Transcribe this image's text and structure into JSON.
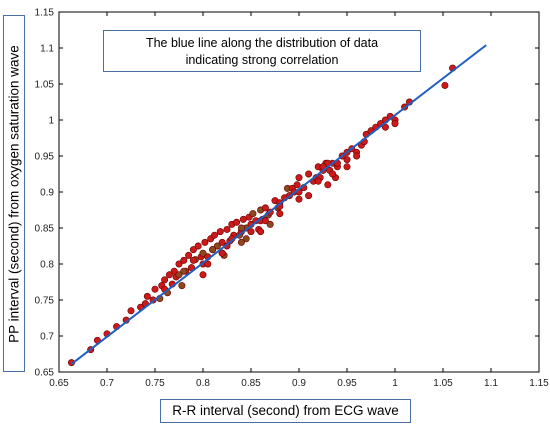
{
  "chart_data": {
    "type": "scatter",
    "title": "",
    "xlabel": "R-R interval (second) from ECG wave",
    "ylabel": "PP interval (second) from oxygen saturation wave",
    "xlim": [
      0.65,
      1.15
    ],
    "ylim": [
      0.65,
      1.15
    ],
    "x_ticks": [
      "0.65",
      "0.7",
      "0.75",
      "0.8",
      "0.85",
      "0.9",
      "0.95",
      "1",
      "1.05",
      "1.1",
      "1.15"
    ],
    "y_ticks": [
      "0.65",
      "0.7",
      "0.75",
      "0.8",
      "0.85",
      "0.9",
      "0.95",
      "1",
      "1.05",
      "1.1",
      "1.15"
    ],
    "grid": false,
    "annotation": [
      "The blue line along the distribution of data",
      "indicating strong correlation"
    ],
    "fit_line": {
      "x": [
        0.663,
        1.095
      ],
      "y": [
        0.661,
        1.104
      ],
      "color": "#1f5fbf"
    },
    "colors": {
      "point_fill": "#cc1a1a",
      "point_edge": "#6b0000",
      "dense_point_fill": "#8a4a1e",
      "fit_line": "#1f5fbf"
    },
    "series": [
      {
        "x": [
          0.663,
          0.683,
          0.69,
          0.7,
          0.71,
          0.72,
          0.725,
          0.735,
          0.74,
          0.742,
          0.748,
          0.75,
          0.755,
          0.757,
          0.76,
          0.763,
          0.765,
          0.768,
          0.77,
          0.772,
          0.775,
          0.778,
          0.78,
          0.782,
          0.785,
          0.788,
          0.79,
          0.792,
          0.795,
          0.798,
          0.8,
          0.802,
          0.805,
          0.808,
          0.81,
          0.812,
          0.815,
          0.818,
          0.82,
          0.822,
          0.825,
          0.828,
          0.83,
          0.832,
          0.835,
          0.838,
          0.84,
          0.842,
          0.845,
          0.848,
          0.85,
          0.852,
          0.855,
          0.858,
          0.86,
          0.862,
          0.865,
          0.868,
          0.87,
          0.875,
          0.878,
          0.88,
          0.885,
          0.888,
          0.89,
          0.893,
          0.895,
          0.898,
          0.9,
          0.905,
          0.91,
          0.915,
          0.918,
          0.92,
          0.922,
          0.925,
          0.928,
          0.93,
          0.932,
          0.935,
          0.938,
          0.94,
          0.945,
          0.95,
          0.955,
          0.96,
          0.965,
          0.968,
          0.97,
          0.975,
          0.98,
          0.985,
          0.99,
          0.995,
          1.0,
          1.01,
          1.015,
          1.052,
          1.06,
          0.78,
          0.79,
          0.8,
          0.81,
          0.82,
          0.83,
          0.84,
          0.85,
          0.86,
          0.87,
          0.88,
          0.9,
          0.91,
          0.92,
          0.93,
          0.95,
          0.96,
          0.76,
          0.775,
          0.805,
          0.825,
          0.845,
          0.865,
          0.9,
          0.925,
          0.94,
          0.99,
          1.0,
          0.8,
          0.82,
          0.84,
          0.86,
          0.88,
          0.935,
          0.95
        ],
        "y": [
          0.663,
          0.681,
          0.694,
          0.703,
          0.713,
          0.722,
          0.735,
          0.74,
          0.745,
          0.755,
          0.75,
          0.765,
          0.752,
          0.77,
          0.778,
          0.76,
          0.785,
          0.772,
          0.79,
          0.782,
          0.8,
          0.77,
          0.805,
          0.79,
          0.812,
          0.795,
          0.82,
          0.806,
          0.825,
          0.81,
          0.815,
          0.83,
          0.81,
          0.835,
          0.82,
          0.84,
          0.825,
          0.845,
          0.83,
          0.812,
          0.848,
          0.832,
          0.855,
          0.84,
          0.858,
          0.84,
          0.845,
          0.862,
          0.85,
          0.865,
          0.855,
          0.87,
          0.86,
          0.848,
          0.875,
          0.862,
          0.878,
          0.868,
          0.872,
          0.888,
          0.878,
          0.885,
          0.892,
          0.905,
          0.895,
          0.905,
          0.9,
          0.91,
          0.92,
          0.906,
          0.925,
          0.915,
          0.92,
          0.935,
          0.92,
          0.93,
          0.94,
          0.91,
          0.93,
          0.94,
          0.92,
          0.935,
          0.95,
          0.935,
          0.96,
          0.955,
          0.965,
          0.97,
          0.98,
          0.985,
          0.99,
          0.995,
          0.99,
          1.005,
          1.0,
          1.018,
          1.025,
          1.048,
          1.072,
          0.79,
          0.805,
          0.8,
          0.82,
          0.815,
          0.835,
          0.85,
          0.845,
          0.86,
          0.855,
          0.88,
          0.9,
          0.895,
          0.915,
          0.94,
          0.945,
          0.95,
          0.765,
          0.785,
          0.8,
          0.825,
          0.835,
          0.86,
          0.89,
          0.935,
          0.94,
          1.0,
          0.995,
          0.785,
          0.815,
          0.83,
          0.845,
          0.87,
          0.925,
          0.955
        ]
      }
    ]
  }
}
